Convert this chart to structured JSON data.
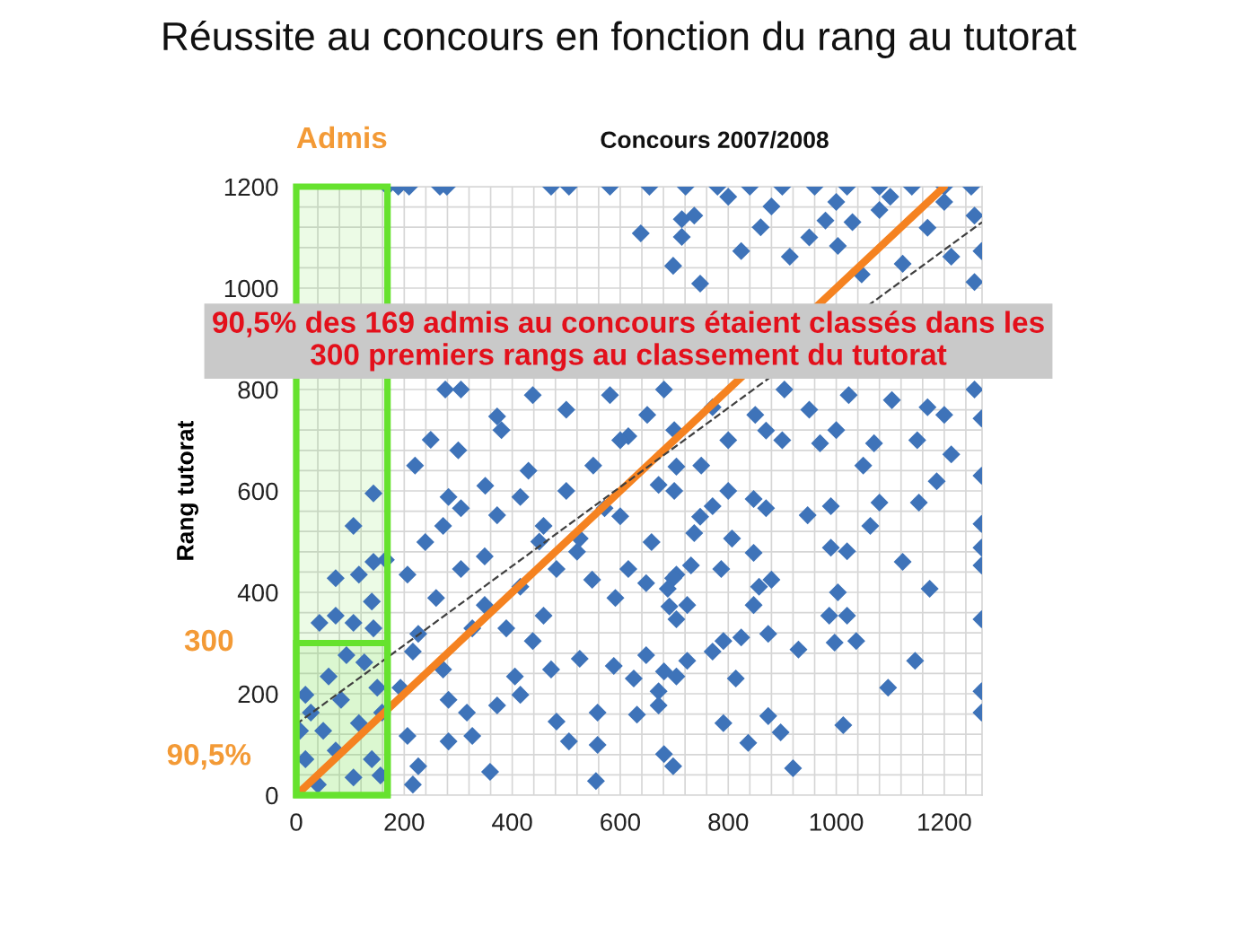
{
  "chart_data": {
    "type": "scatter",
    "title": "Réussite au concours en fonction du rang au tutorat",
    "subtitle": "Concours 2007/2008",
    "ylabel": "Rang tutorat",
    "marker": "diamond",
    "grid": true,
    "xlim": [
      0,
      1270
    ],
    "ylim": [
      0,
      1200
    ],
    "xticks": [
      0,
      {
        "value": 40,
        "label": null
      },
      {
        "value": 80,
        "label": null
      },
      {
        "value": 120,
        "label": null
      },
      {
        "value": 160,
        "label": null
      },
      200,
      {
        "value": 240,
        "label": null
      },
      {
        "value": 280,
        "label": null
      },
      {
        "value": 320,
        "label": null
      },
      {
        "value": 360,
        "label": null
      },
      400,
      {
        "value": 440,
        "label": null
      },
      {
        "value": 480,
        "label": null
      },
      {
        "value": 520,
        "label": null
      },
      {
        "value": 560,
        "label": null
      },
      600,
      {
        "value": 640,
        "label": null
      },
      {
        "value": 680,
        "label": null
      },
      {
        "value": 720,
        "label": null
      },
      {
        "value": 760,
        "label": null
      },
      800,
      {
        "value": 840,
        "label": null
      },
      {
        "value": 880,
        "label": null
      },
      {
        "value": 920,
        "label": null
      },
      {
        "value": 960,
        "label": null
      },
      1000,
      {
        "value": 1040,
        "label": null
      },
      {
        "value": 1080,
        "label": null
      },
      {
        "value": 1120,
        "label": null
      },
      {
        "value": 1160,
        "label": null
      },
      1200,
      {
        "value": 1240,
        "label": null
      }
    ],
    "yticks": [
      0,
      {
        "value": 40,
        "label": null
      },
      {
        "value": 80,
        "label": null
      },
      {
        "value": 120,
        "label": null
      },
      {
        "value": 160,
        "label": null
      },
      200,
      {
        "value": 240,
        "label": null
      },
      {
        "value": 280,
        "label": null
      },
      {
        "value": 320,
        "label": null
      },
      {
        "value": 360,
        "label": null
      },
      400,
      {
        "value": 440,
        "label": null
      },
      {
        "value": 480,
        "label": null
      },
      {
        "value": 520,
        "label": null
      },
      {
        "value": 560,
        "label": null
      },
      600,
      {
        "value": 640,
        "label": null
      },
      {
        "value": 680,
        "label": null
      },
      {
        "value": 720,
        "label": null
      },
      {
        "value": 760,
        "label": null
      },
      800,
      1000,
      {
        "value": 1040,
        "label": null
      },
      {
        "value": 1080,
        "label": null
      },
      {
        "value": 1120,
        "label": null
      },
      {
        "value": 1160,
        "label": null
      },
      1200
    ],
    "series": [
      {
        "color": "#3e73b9",
        "x": [
          169,
          189,
          209,
          266,
          279,
          472,
          505,
          581,
          654,
          721,
          780,
          840,
          900,
          960,
          1020,
          1080,
          1140,
          1200,
          1250,
          638,
          714,
          698,
          737,
          714,
          748,
          880,
          980,
          1080,
          1169,
          1256,
          1269,
          1256,
          1123,
          1047,
          914,
          824,
          1003,
          1213,
          800,
          1000,
          1100,
          1200,
          950,
          860,
          1030,
          276,
          305,
          249,
          372,
          438,
          581,
          681,
          771,
          904,
          1023,
          1103,
          1169,
          1256,
          1269,
          1070,
          970,
          1213,
          870,
          615,
          220,
          300,
          380,
          430,
          500,
          350,
          500,
          550,
          600,
          650,
          700,
          750,
          800,
          600,
          520,
          450,
          700,
          800,
          850,
          900,
          950,
          1000,
          1050,
          1150,
          1200,
          947,
          990,
          990,
          1020,
          1123,
          1173,
          1003,
          987,
          1020,
          997,
          1037,
          1146,
          1096,
          1013,
          920,
          874,
          897,
          837,
          791,
          814,
          791,
          824,
          874,
          930,
          771,
          724,
          704,
          671,
          671,
          631,
          681,
          698,
          558,
          558,
          555,
          588,
          625,
          648,
          681,
          1269,
          1269,
          1269,
          1269,
          1269,
          1269,
          1269,
          1153,
          1186,
          1080,
          1063,
          847,
          870,
          847,
          857,
          880,
          847,
          807,
          787,
          731,
          704,
          688,
          691,
          704,
          648,
          658,
          748,
          771,
          143,
          106,
          73,
          116,
          143,
          166,
          140,
          43,
          73,
          106,
          143,
          17,
          27,
          60,
          93,
          126,
          150,
          83,
          50,
          116,
          17,
          73,
          140,
          40,
          106,
          156,
          7,
          159,
          206,
          239,
          282,
          305,
          226,
          216,
          193,
          206,
          226,
          216,
          282,
          326,
          359,
          282,
          316,
          372,
          415,
          405,
          272,
          472,
          525,
          482,
          505,
          389,
          438,
          458,
          326,
          259,
          305,
          349,
          272,
          372,
          415,
          458,
          525,
          482,
          548,
          591,
          615,
          571,
          671,
          704,
          737,
          698,
          724,
          415,
          349
        ],
        "values": [
          1200,
          1200,
          1200,
          1200,
          1200,
          1200,
          1200,
          1200,
          1200,
          1200,
          1200,
          1200,
          1200,
          1200,
          1200,
          1200,
          1200,
          1200,
          1200,
          1108,
          1136,
          1044,
          1143,
          1101,
          1009,
          1161,
          1133,
          1154,
          1119,
          1143,
          1073,
          1012,
          1048,
          1027,
          1062,
          1073,
          1083,
          1062,
          1180,
          1170,
          1180,
          1170,
          1100,
          1120,
          1130,
          800,
          800,
          701,
          747,
          789,
          789,
          800,
          765,
          800,
          789,
          779,
          765,
          800,
          743,
          694,
          694,
          672,
          719,
          708,
          650,
          680,
          720,
          640,
          760,
          610,
          600,
          650,
          700,
          750,
          720,
          650,
          700,
          550,
          480,
          500,
          600,
          600,
          750,
          700,
          760,
          720,
          650,
          700,
          750,
          552,
          570,
          488,
          481,
          460,
          407,
          400,
          354,
          354,
          301,
          304,
          265,
          212,
          138,
          53,
          156,
          124,
          103,
          142,
          230,
          304,
          311,
          318,
          287,
          283,
          265,
          234,
          205,
          177,
          159,
          81,
          57,
          163,
          99,
          28,
          255,
          230,
          276,
          244,
          630,
          535,
          488,
          453,
          347,
          205,
          163,
          577,
          619,
          577,
          531,
          584,
          566,
          478,
          411,
          425,
          375,
          506,
          446,
          453,
          435,
          407,
          372,
          347,
          418,
          499,
          549,
          570,
          595,
          531,
          428,
          435,
          460,
          464,
          382,
          340,
          354,
          340,
          329,
          198,
          163,
          234,
          276,
          262,
          212,
          188,
          127,
          142,
          71,
          88,
          71,
          21,
          35,
          39,
          127,
          163,
          435,
          499,
          588,
          566,
          318,
          283,
          212,
          117,
          57,
          21,
          106,
          117,
          46,
          188,
          163,
          177,
          198,
          234,
          248,
          248,
          269,
          145,
          106,
          329,
          304,
          354,
          329,
          389,
          446,
          471,
          531,
          552,
          588,
          531,
          506,
          446,
          425,
          389,
          446,
          566,
          612,
          648,
          517,
          428,
          375,
          411,
          375
        ]
      },
      {
        "type": "line",
        "marker": "none",
        "color": "#f58220",
        "x": [
          10,
          1200
        ],
        "values": [
          10,
          1200
        ]
      },
      {
        "type": "line",
        "marker": "none",
        "color": "#404040",
        "line_style": "dashed",
        "x": [
          0,
          1270
        ],
        "values": [
          140,
          1130
        ]
      }
    ],
    "bands": [
      {
        "axis": "x",
        "from": 0,
        "to": 169,
        "label": "Admis",
        "color": "#66e22e"
      },
      {
        "axis": "y",
        "from": 0,
        "to": 300,
        "label": "300",
        "color": "#66e22e"
      }
    ],
    "annotations": [
      "90,5% des 169 admis au concours étaient classés dans les\n300 premiers rangs au classement du tutorat",
      {
        "text": "90,5%",
        "x": 0,
        "y": 75
      }
    ]
  }
}
